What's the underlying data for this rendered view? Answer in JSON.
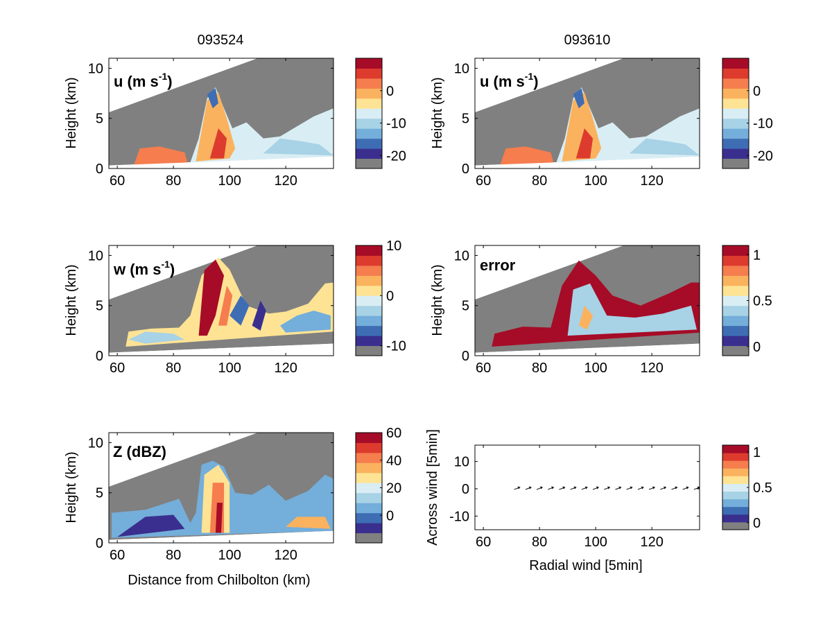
{
  "figure": {
    "column_titles": [
      "093524",
      "093610"
    ],
    "bottom_left_xlabel": "Distance from Chilbolton (km)",
    "colors": {
      "mask": "#808080",
      "scale": [
        "#3A2F8F",
        "#3E6DB4",
        "#74AEDA",
        "#A8D2E6",
        "#D9EEF4",
        "#FEE394",
        "#FBB25E",
        "#F57D4E",
        "#DD3B2E",
        "#A60C27"
      ]
    }
  },
  "chart_data": [
    {
      "id": "u_093524",
      "type": "heatmap",
      "panel_label": "u (m s",
      "panel_label_sup": "-1",
      "panel_label_tail": ")",
      "ylabel": "Height (km)",
      "xlim": [
        57,
        137
      ],
      "ylim": [
        0,
        11
      ],
      "xticks": [
        60,
        80,
        100,
        120
      ],
      "yticks": [
        0,
        5,
        10
      ],
      "colorbar": {
        "min": -24,
        "max": 10,
        "ticks": [
          0,
          -10,
          -20
        ]
      }
    },
    {
      "id": "u_093610",
      "type": "heatmap",
      "panel_label": "u (m s",
      "panel_label_sup": "-1",
      "panel_label_tail": ")",
      "ylabel": "Height (km)",
      "xlim": [
        57,
        137
      ],
      "ylim": [
        0,
        11
      ],
      "xticks": [
        60,
        80,
        100,
        120
      ],
      "yticks": [
        0,
        5,
        10
      ],
      "colorbar": {
        "min": -24,
        "max": 10,
        "ticks": [
          0,
          -10,
          -20
        ]
      }
    },
    {
      "id": "w_093524",
      "type": "heatmap",
      "panel_label": "w (m s",
      "panel_label_sup": "-1",
      "panel_label_tail": ")",
      "ylabel": "Height (km)",
      "xlim": [
        57,
        137
      ],
      "ylim": [
        0,
        11
      ],
      "xticks": [
        60,
        80,
        100,
        120
      ],
      "yticks": [
        0,
        5,
        10
      ],
      "colorbar": {
        "min": -12,
        "max": 10,
        "ticks": [
          10,
          0,
          -10
        ]
      }
    },
    {
      "id": "error",
      "type": "heatmap",
      "panel_label": "error",
      "ylabel": "Height (km)",
      "xlim": [
        57,
        137
      ],
      "ylim": [
        0,
        11
      ],
      "xticks": [
        60,
        80,
        100,
        120
      ],
      "yticks": [
        0,
        5,
        10
      ],
      "colorbar": {
        "min": -0.1,
        "max": 1.1,
        "ticks": [
          1,
          0.5,
          0
        ]
      }
    },
    {
      "id": "Z_093524",
      "type": "heatmap",
      "panel_label": "Z (dBZ)",
      "ylabel": "Height (km)",
      "xlabel": "Distance from Chilbolton (km)",
      "xlim": [
        57,
        137
      ],
      "ylim": [
        0,
        11
      ],
      "xticks": [
        60,
        80,
        100,
        120
      ],
      "yticks": [
        0,
        5,
        10
      ],
      "colorbar": {
        "min": -20,
        "max": 60,
        "ticks": [
          60,
          40,
          20,
          0
        ]
      }
    },
    {
      "id": "quiver",
      "type": "scatter",
      "xlabel": "Radial wind [5min]",
      "ylabel": "Across wind [5min]",
      "xlim": [
        57,
        137
      ],
      "ylim": [
        -15,
        16
      ],
      "xticks": [
        60,
        80,
        100,
        120
      ],
      "yticks": [
        10,
        0,
        -10
      ],
      "arrows": {
        "x": [
          71,
          75,
          79,
          83,
          87,
          91,
          95,
          99,
          103,
          107,
          111,
          115,
          119,
          123,
          127,
          131,
          135
        ],
        "y": [
          0,
          0,
          0,
          0,
          0,
          0,
          0,
          0,
          0,
          0,
          0,
          0,
          0,
          0,
          0,
          0,
          0
        ]
      },
      "colorbar": {
        "min": -0.1,
        "max": 1.1,
        "ticks": [
          1,
          0.5,
          0
        ]
      }
    }
  ]
}
